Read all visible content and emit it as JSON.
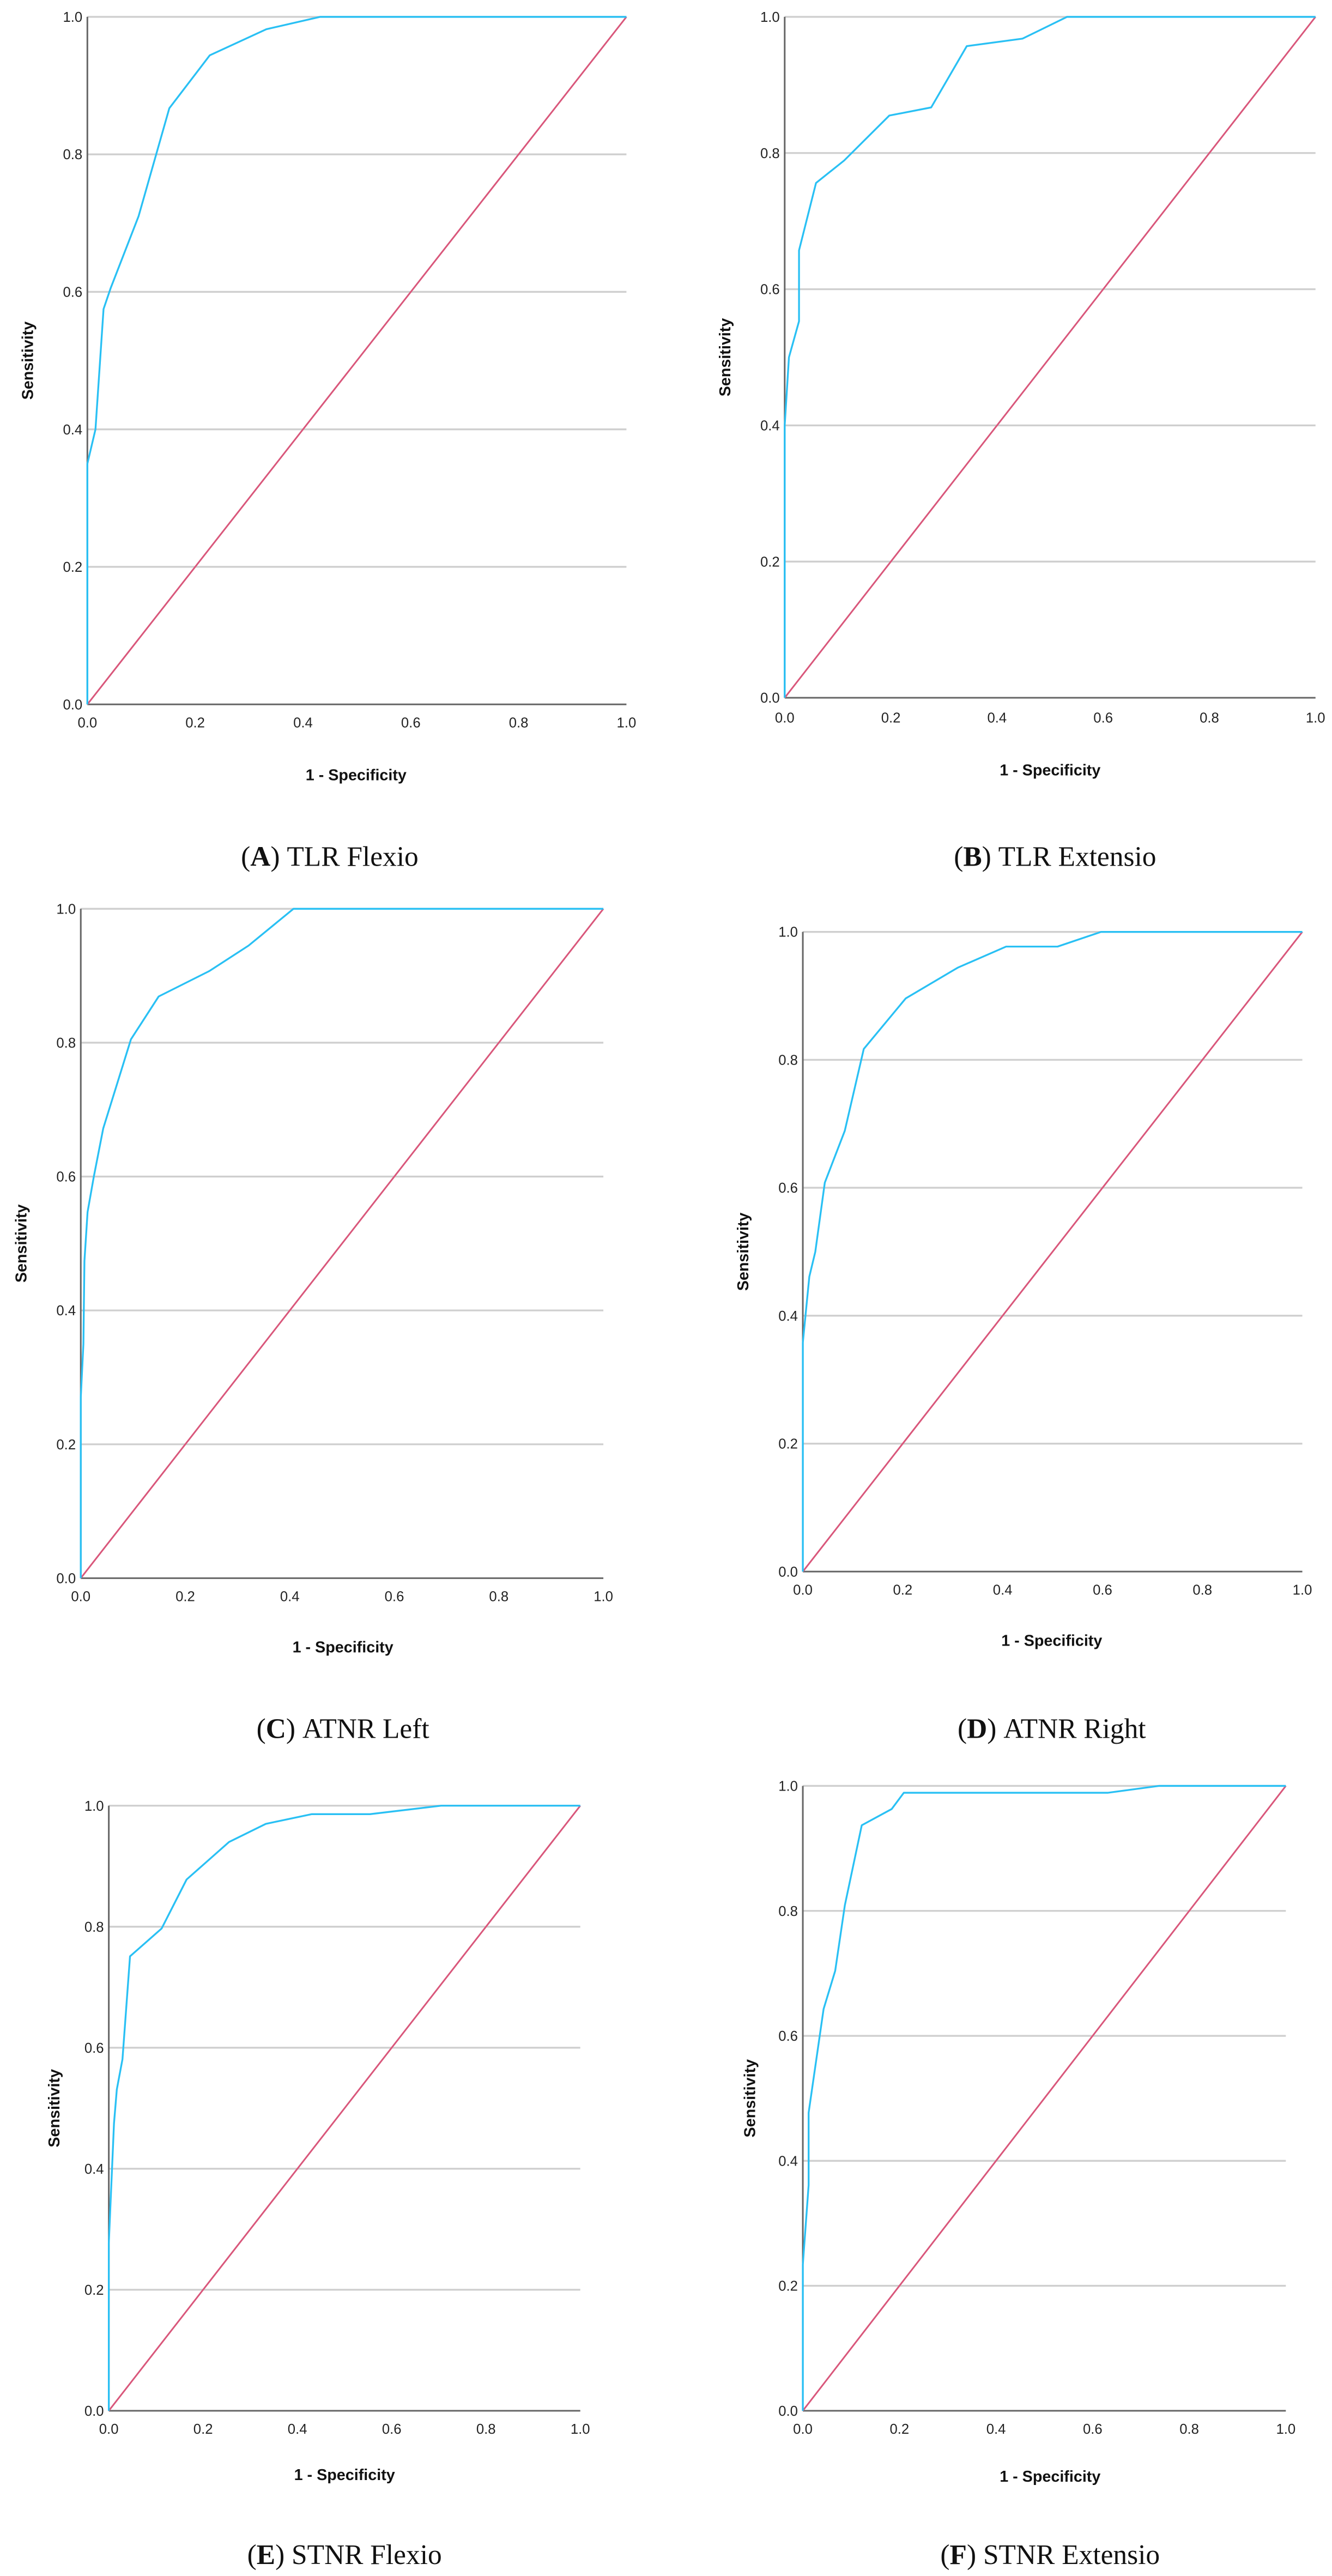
{
  "colors": {
    "roc_curve": "#29c0f4",
    "reference_line": "#d9577b",
    "grid": "#cfcfcf"
  },
  "chart_data": [
    {
      "type": "line",
      "panel_letter": "A",
      "caption": "TLR Flexio",
      "xlabel": "1 - Specificity",
      "ylabel": "Sensitivity",
      "xlim": [
        0,
        1
      ],
      "ylim": [
        0,
        1
      ],
      "grid": "horizontal",
      "xticks": [
        "0.0",
        "0.2",
        "0.4",
        "0.6",
        "0.8",
        "1.0"
      ],
      "yticks": [
        "0.0",
        "0.2",
        "0.4",
        "0.6",
        "0.8",
        "1.0"
      ],
      "roc": {
        "x": [
          0,
          0,
          0.015,
          0.03,
          0.043,
          0.095,
          0.152,
          0.227,
          0.332,
          0.432,
          1
        ],
        "y": [
          0,
          0.35,
          0.4,
          0.575,
          0.605,
          0.71,
          0.867,
          0.944,
          0.982,
          1,
          1
        ]
      },
      "reference": {
        "x": [
          0,
          1
        ],
        "y": [
          0,
          1
        ]
      }
    },
    {
      "type": "line",
      "panel_letter": "B",
      "caption": "TLR Extensio",
      "xlabel": "1 - Specificity",
      "ylabel": "Sensitivity",
      "xlim": [
        0,
        1
      ],
      "ylim": [
        0,
        1
      ],
      "grid": "horizontal",
      "xticks": [
        "0.0",
        "0.2",
        "0.4",
        "0.6",
        "0.8",
        "1.0"
      ],
      "yticks": [
        "0.0",
        "0.2",
        "0.4",
        "0.6",
        "0.8",
        "1.0"
      ],
      "roc": {
        "x": [
          0,
          0,
          0.008,
          0.027,
          0.027,
          0.059,
          0.112,
          0.197,
          0.276,
          0.343,
          0.448,
          0.532,
          1
        ],
        "y": [
          0,
          0.4,
          0.5,
          0.553,
          0.657,
          0.756,
          0.789,
          0.855,
          0.867,
          0.957,
          0.968,
          1,
          1
        ]
      },
      "reference": {
        "x": [
          0,
          1
        ],
        "y": [
          0,
          1
        ]
      }
    },
    {
      "type": "line",
      "panel_letter": "C",
      "caption": "ATNR Left",
      "xlabel": "1 - Specificity",
      "ylabel": "Sensitivity",
      "xlim": [
        0,
        1
      ],
      "ylim": [
        0,
        1
      ],
      "grid": "horizontal",
      "xticks": [
        "0.0",
        "0.2",
        "0.4",
        "0.6",
        "0.8",
        "1.0"
      ],
      "yticks": [
        "0.0",
        "0.2",
        "0.4",
        "0.6",
        "0.8",
        "1.0"
      ],
      "roc": {
        "x": [
          0,
          0,
          0.005,
          0.007,
          0.013,
          0.025,
          0.043,
          0.096,
          0.149,
          0.246,
          0.321,
          0.407,
          1
        ],
        "y": [
          0,
          0.27,
          0.35,
          0.474,
          0.547,
          0.6,
          0.672,
          0.805,
          0.869,
          0.907,
          0.945,
          1,
          1
        ]
      },
      "reference": {
        "x": [
          0,
          1
        ],
        "y": [
          0,
          1
        ]
      }
    },
    {
      "type": "line",
      "panel_letter": "D",
      "caption": "ATNR Right",
      "xlabel": "1 - Specificity",
      "ylabel": "Sensitivity",
      "xlim": [
        0,
        1
      ],
      "ylim": [
        0,
        1
      ],
      "grid": "horizontal",
      "xticks": [
        "0.0",
        "0.2",
        "0.4",
        "0.6",
        "0.8",
        "1.0"
      ],
      "yticks": [
        "0.0",
        "0.2",
        "0.4",
        "0.6",
        "0.8",
        "1.0"
      ],
      "roc": {
        "x": [
          0,
          0,
          0.013,
          0.025,
          0.044,
          0.084,
          0.122,
          0.206,
          0.31,
          0.407,
          0.51,
          0.597,
          1
        ],
        "y": [
          0,
          0.358,
          0.461,
          0.5,
          0.608,
          0.689,
          0.817,
          0.896,
          0.944,
          0.977,
          0.977,
          1,
          1
        ]
      },
      "reference": {
        "x": [
          0,
          1
        ],
        "y": [
          0,
          1
        ]
      }
    },
    {
      "type": "line",
      "panel_letter": "E",
      "caption": "STNR Flexio",
      "xlabel": "1 - Specificity",
      "ylabel": "Sensitivity",
      "xlim": [
        0,
        1
      ],
      "ylim": [
        0,
        1
      ],
      "grid": "horizontal",
      "xticks": [
        "0.0",
        "0.2",
        "0.4",
        "0.6",
        "0.8",
        "1.0"
      ],
      "yticks": [
        "0.0",
        "0.2",
        "0.4",
        "0.6",
        "0.8",
        "1.0"
      ],
      "roc": {
        "x": [
          0,
          0,
          0.011,
          0.017,
          0.029,
          0.045,
          0.112,
          0.165,
          0.255,
          0.333,
          0.43,
          0.554,
          0.705,
          1
        ],
        "y": [
          0,
          0.277,
          0.475,
          0.531,
          0.581,
          0.751,
          0.797,
          0.878,
          0.94,
          0.97,
          0.986,
          0.986,
          1,
          1
        ]
      },
      "reference": {
        "x": [
          0,
          1
        ],
        "y": [
          0,
          1
        ]
      }
    },
    {
      "type": "line",
      "panel_letter": "F",
      "caption": "STNR Extensio",
      "xlabel": "1 - Specificity",
      "ylabel": "Sensitivity",
      "xlim": [
        0,
        1
      ],
      "ylim": [
        0,
        1
      ],
      "grid": "horizontal",
      "xticks": [
        "0.0",
        "0.2",
        "0.4",
        "0.6",
        "0.8",
        "1.0"
      ],
      "yticks": [
        "0.0",
        "0.2",
        "0.4",
        "0.6",
        "0.8",
        "1.0"
      ],
      "roc": {
        "x": [
          0,
          0,
          0.012,
          0.012,
          0.043,
          0.067,
          0.087,
          0.122,
          0.184,
          0.209,
          0.631,
          0.737,
          1
        ],
        "y": [
          0,
          0.234,
          0.361,
          0.477,
          0.643,
          0.704,
          0.809,
          0.937,
          0.963,
          0.989,
          0.989,
          1,
          1
        ]
      },
      "reference": {
        "x": [
          0,
          1
        ],
        "y": [
          0,
          1
        ]
      }
    }
  ]
}
